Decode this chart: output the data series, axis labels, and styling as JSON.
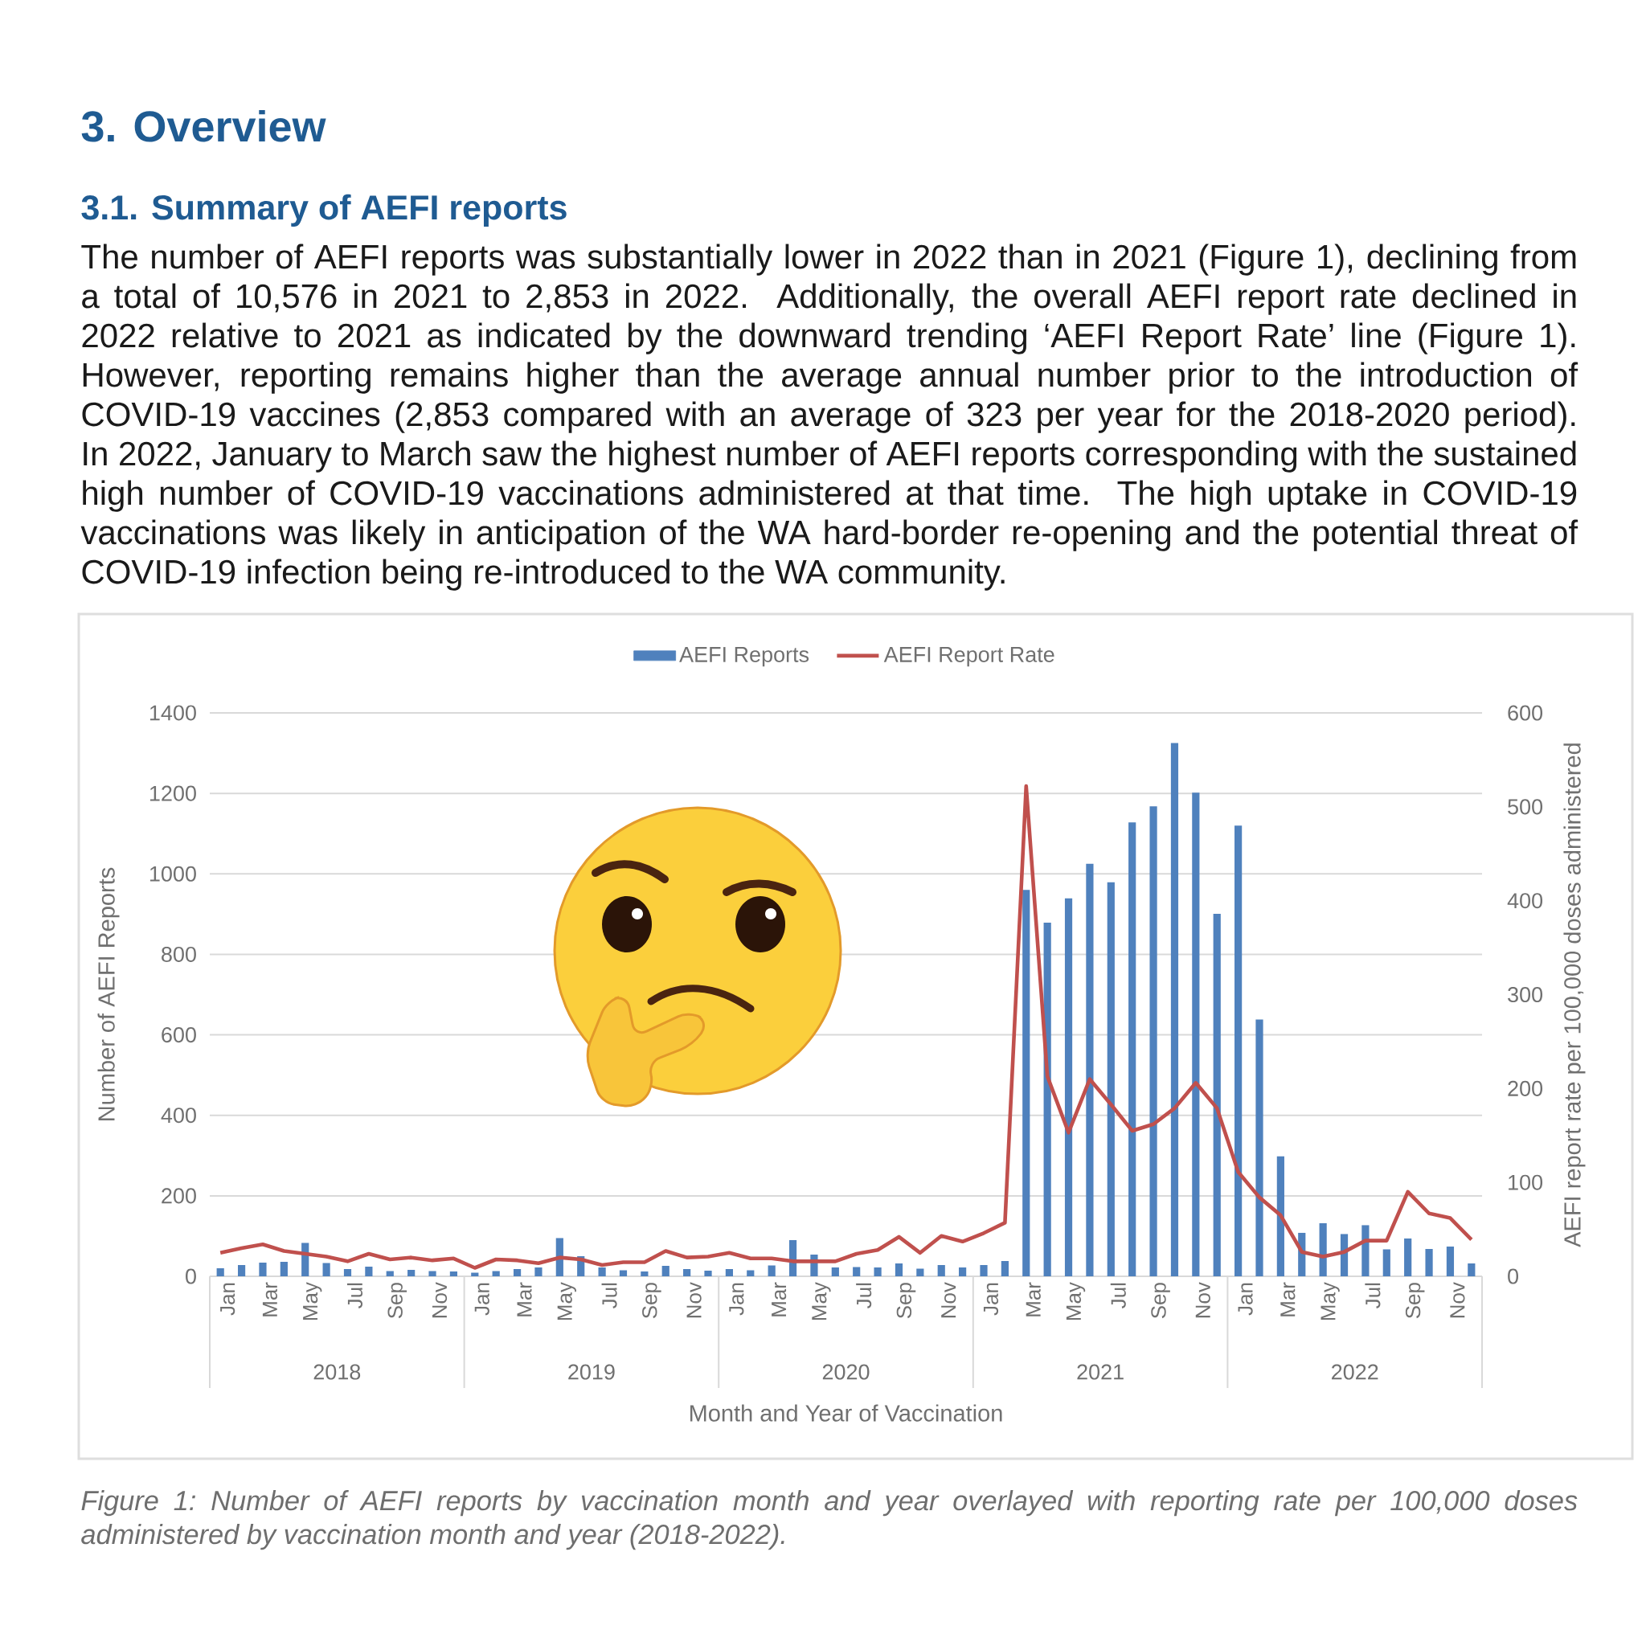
{
  "chart_data": {
    "type": "bar",
    "title": "3. Overview",
    "subtitle": "3.1. Summary of AEFI reports",
    "xlabel": "Month and Year of Vaccination",
    "ylabel": "Number of AEFI Reports",
    "y2label": "AEFI report rate per 100,000 doses administered",
    "annotations": [
      "The number of AEFI reports was substantially lower in 2022 than in 2021 (Figure 1), declining from a total of 10,576 in 2021 to 2,853 in 2022. Additionally, the overall AEFI report rate declined in 2022 relative to 2021 as indicated by the downward trending ‘AEFI Report Rate’ line (Figure 1). However, reporting remains higher than the average annual number prior to the introduction of COVID-19 vaccines (2,853 compared with an average of 323 per year for the 2018-2020 period). In 2022, January to March saw the highest number of AEFI reports corresponding with the sustained high number of COVID-19 vaccinations administered at that time. The high uptake in COVID-19 vaccinations was likely in anticipation of the WA hard-border re-opening and the potential threat of COVID-19 infection being re-introduced to the WA community.",
      "2018",
      "2019",
      "2020",
      "2021",
      "2022",
      "Figure 1: Number of AEFI reports by vaccination month and year overlayed with reporting rate per 100,000 doses administered by vaccination month and year (2018-2022)."
    ],
    "categories": [
      "Jan",
      null,
      "Mar",
      null,
      "May",
      null,
      "Jul",
      null,
      "Sep",
      null,
      "Nov",
      null,
      "Jan",
      null,
      "Mar",
      null,
      "May",
      null,
      "Jul",
      null,
      "Sep",
      null,
      "Nov",
      null,
      "Jan",
      null,
      "Mar",
      null,
      "May",
      null,
      "Jul",
      null,
      "Sep",
      null,
      "Nov",
      null,
      "Jan",
      null,
      "Mar",
      null,
      "May",
      null,
      "Jul",
      null,
      "Sep",
      null,
      "Nov",
      null,
      "Jan",
      null,
      "Mar",
      null,
      "May",
      null,
      "Jul",
      null,
      "Sep",
      null,
      "Nov",
      null
    ],
    "series": [
      {
        "name": "AEFI Reports",
        "color": "#4f81bd",
        "values": [
          20,
          28,
          34,
          36,
          83,
          33,
          18,
          24,
          13,
          16,
          13,
          12,
          9,
          13,
          18,
          22,
          95,
          50,
          22,
          15,
          12,
          26,
          18,
          14,
          18,
          15,
          27,
          90,
          54,
          22,
          23,
          22,
          32,
          19,
          28,
          22,
          28,
          38,
          960,
          879,
          939,
          1025,
          979,
          1128,
          1168,
          1325,
          1202,
          901,
          1120,
          638,
          298,
          108,
          132,
          105,
          127,
          67,
          94,
          68,
          74,
          32
        ]
      },
      {
        "name": "AEFI Report Rate",
        "type": "line",
        "axis": "y2",
        "color": "#c0504d",
        "values": [
          25,
          30,
          34,
          27,
          24,
          21,
          16,
          24,
          18,
          20,
          17,
          19,
          9,
          18,
          17,
          14,
          20,
          18,
          12,
          15,
          15,
          27,
          20,
          21,
          25,
          19,
          19,
          16,
          16,
          16,
          24,
          28,
          42,
          25,
          43,
          37,
          46,
          57,
          522,
          213,
          153,
          210,
          183,
          155,
          162,
          179,
          206,
          179,
          111,
          84,
          65,
          26,
          21,
          26,
          38,
          38,
          90,
          67,
          62,
          39
        ]
      }
    ],
    "ylim": [
      0,
      1400
    ],
    "yticks": [
      0,
      200,
      400,
      600,
      800,
      1000,
      1200,
      1400
    ],
    "y2lim": [
      0,
      600
    ],
    "y2ticks": [
      0,
      100,
      200,
      300,
      400,
      500,
      600
    ],
    "grid": "y",
    "legend": "top"
  }
}
